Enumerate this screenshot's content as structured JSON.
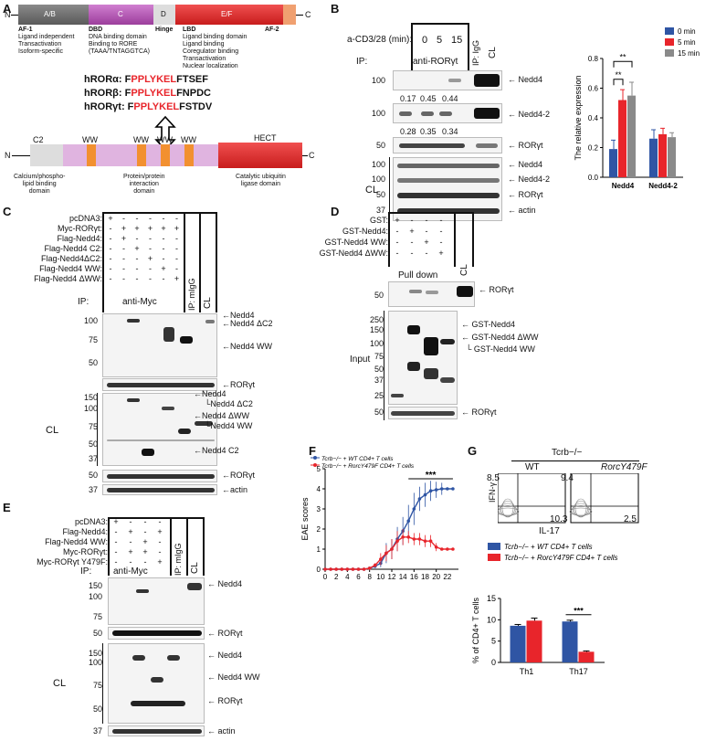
{
  "panels": {
    "A": "A",
    "B": "B",
    "C": "C",
    "D": "D",
    "E": "E",
    "F": "F",
    "G": "G"
  },
  "panelA": {
    "n": "N",
    "c": "C",
    "domains": [
      "A/B",
      "C",
      "D",
      "E/F"
    ],
    "af1": "AF-1",
    "af1_desc": "Ligand independent\nTransactivation\nIsoform-specific",
    "dbd": "DBD",
    "dbd_desc": "DNA binding domain\nBinding to RORE\n(TAAA/TNTAGGTCA)",
    "hinge": "Hinge",
    "lbd": "LBD",
    "lbd_desc": "Ligand binding domain\nLigand binding\nCoregulator binding\nTransactivation\nNuclear localization",
    "af2": "AF-2",
    "seqs": [
      {
        "name": "hRORα:",
        "pre": "F",
        "motif": "PPLYKEL",
        "post": "FTSEF"
      },
      {
        "name": "hRORβ:",
        "pre": "F",
        "motif": "PPLYKEL",
        "post": "FNPDC"
      },
      {
        "name": "hRORγt:",
        "pre": "F",
        "motif": "PPLYKEL",
        "post": "FSTDV"
      }
    ],
    "nedd4": {
      "n": "N",
      "c": "C",
      "c2": "C2",
      "ww": [
        "WW",
        "WW",
        "WW",
        "WW"
      ],
      "hect": "HECT",
      "desc1": "Calcium/phospho-\nlipid binding\ndomain",
      "desc2": "Protein/protein\ninteraction\ndomain",
      "desc3": "Catalytic ubiquitin\nligase domain"
    }
  },
  "panelB": {
    "acd": "a-CD3/28 (min):",
    "times": [
      "0",
      "5",
      "15"
    ],
    "ip": "IP:",
    "anti": "anti-RORγt",
    "ipigg": "IP: IgG",
    "cl": "CL",
    "row1": {
      "mw": "100",
      "vals": [
        "0.17",
        "0.45",
        "0.44"
      ],
      "label": "Nedd4"
    },
    "row2": {
      "mw": "100",
      "vals": [
        "0.28",
        "0.35",
        "0.34"
      ],
      "label": "Nedd4-2"
    },
    "row3": {
      "mw": "50",
      "label": "RORγt"
    },
    "cl_rows": [
      {
        "mw": "100",
        "label": "Nedd4"
      },
      {
        "mw": "100",
        "label": "Nedd4-2"
      },
      {
        "mw": "50",
        "label": "RORγt"
      },
      {
        "mw": "37",
        "label": "actin"
      }
    ],
    "cl_side": "CL"
  },
  "panelC": {
    "rows": [
      {
        "label": "pcDNA3:",
        "signs": [
          "+",
          "-",
          "-",
          "-",
          "-",
          "-"
        ]
      },
      {
        "label": "Myc-RORγt:",
        "signs": [
          "-",
          "+",
          "+",
          "+",
          "+",
          "+"
        ]
      },
      {
        "label": "Flag-Nedd4:",
        "signs": [
          "-",
          "+",
          "-",
          "-",
          "-",
          "-"
        ]
      },
      {
        "label": "Flag-Nedd4 C2:",
        "signs": [
          "-",
          "-",
          "+",
          "-",
          "-",
          "-"
        ]
      },
      {
        "label": "Flag-Nedd4ΔC2:",
        "signs": [
          "-",
          "-",
          "-",
          "+",
          "-",
          "-"
        ]
      },
      {
        "label": "Flag-Nedd4 WW:",
        "signs": [
          "-",
          "-",
          "-",
          "-",
          "+",
          "-"
        ]
      },
      {
        "label": "Flag-Nedd4 ΔWW:",
        "signs": [
          "-",
          "-",
          "-",
          "-",
          "-",
          "+"
        ]
      }
    ],
    "ip": "IP:",
    "anti": "anti-Myc",
    "ipmigg": "IP: mIgG",
    "cl": "CL",
    "mw1": [
      "100",
      "75",
      "50"
    ],
    "ann1": [
      "Nedd4",
      "Nedd4 ΔC2",
      "Nedd4 WW"
    ],
    "ror": "RORγt",
    "mw2": [
      "150",
      "100",
      "75",
      "50",
      "37"
    ],
    "ann2": [
      "Nedd4",
      "Nedd4 ΔC2",
      "Nedd4 ΔWW",
      "Nedd4 WW",
      "Nedd4 C2"
    ],
    "mw3": "50",
    "ror2": "RORγt",
    "mw4": "37",
    "actin": "actin",
    "cl_side": "CL"
  },
  "panelD": {
    "rows": [
      {
        "label": "GST:",
        "signs": [
          "+",
          "-",
          "-",
          "-"
        ]
      },
      {
        "label": "GST-Nedd4:",
        "signs": [
          "-",
          "+",
          "-",
          "-"
        ]
      },
      {
        "label": "GST-Nedd4 WW:",
        "signs": [
          "-",
          "-",
          "+",
          "-"
        ]
      },
      {
        "label": "GST-Nedd4 ΔWW:",
        "signs": [
          "-",
          "-",
          "-",
          "+"
        ]
      }
    ],
    "pulldown": "Pull down",
    "cl": "CL",
    "mw1": "50",
    "ror": "RORγt",
    "input": "Input",
    "mw2": [
      "250",
      "150",
      "100",
      "75",
      "50",
      "37",
      "25",
      "50"
    ],
    "ann": [
      "GST-Nedd4",
      "GST-Nedd4 ΔWW",
      "GST-Nedd4 WW",
      "RORγt"
    ]
  },
  "panelE": {
    "rows": [
      {
        "label": "pcDNA3:",
        "signs": [
          "+",
          "-",
          "-",
          "-"
        ]
      },
      {
        "label": "Flag-Nedd4:",
        "signs": [
          "-",
          "+",
          "-",
          "+"
        ]
      },
      {
        "label": "Flag-Nedd4 WW:",
        "signs": [
          "-",
          "-",
          "+",
          "-"
        ]
      },
      {
        "label": "Myc-RORγt:",
        "signs": [
          "-",
          "+",
          "+",
          "-"
        ]
      },
      {
        "label": "Myc-RORγt Y479F:",
        "signs": [
          "-",
          "-",
          "-",
          "+"
        ]
      }
    ],
    "ip": "IP:",
    "anti": "anti-Myc",
    "ipmigg": "IP: mIgG",
    "cl": "CL",
    "mw1": [
      "150",
      "100",
      "75"
    ],
    "ann1": "Nedd4",
    "mw2": "50",
    "ror": "RORγt",
    "mw3": [
      "150",
      "100",
      "75",
      "50"
    ],
    "ann3": [
      "Nedd4",
      "Nedd4 WW",
      "RORγt"
    ],
    "mw4": "37",
    "actin": "actin",
    "cl_side": "CL"
  },
  "panelF": {
    "ylabel": "EAE scores",
    "sig": "***",
    "legend": [
      "Tcrb−/− + WT CD4+ T cells",
      "Tcrb−/− + RorcY479F CD4+ T cells"
    ]
  },
  "panelG": {
    "title": "Tcrb−/−",
    "wt": "WT",
    "mut": "RorcY479F",
    "ylab": "IFN-γ",
    "xlab": "IL-17",
    "wt_q": {
      "tl": "8.5",
      "br": "10.3"
    },
    "mut_q": {
      "tl": "9.4",
      "br": "2.5"
    },
    "legend": [
      "Tcrb−/− + WT CD4+ T cells",
      "Tcrb−/− + RorcY479F CD4+ T cells"
    ],
    "sig": "***"
  },
  "chart_data": [
    {
      "type": "bar",
      "title": "",
      "ylabel": "The relative expression",
      "categories": [
        "Nedd4",
        "Nedd4-2"
      ],
      "ylim": [
        0,
        0.8
      ],
      "legend_position": "top-right",
      "series": [
        {
          "name": "0 min",
          "color": "#2f55a4",
          "values": [
            0.19,
            0.26
          ],
          "err": [
            0.06,
            0.06
          ]
        },
        {
          "name": "5 min",
          "color": "#e8252b",
          "values": [
            0.52,
            0.29
          ],
          "err": [
            0.07,
            0.04
          ]
        },
        {
          "name": "15 min",
          "color": "#8a8a8a",
          "values": [
            0.55,
            0.27
          ],
          "err": [
            0.09,
            0.03
          ]
        }
      ],
      "yticks": [
        "0.0",
        "0.2",
        "0.4",
        "0.6",
        "0.8"
      ],
      "annotations": [
        "**",
        "**"
      ]
    },
    {
      "type": "line",
      "ylabel": "EAE scores",
      "xlabel": "",
      "xlim": [
        0,
        24
      ],
      "ylim": [
        0,
        5
      ],
      "xticks": [
        "0",
        "4",
        "8",
        "12",
        "16",
        "20"
      ],
      "xticks_extra": [
        "2",
        "6",
        "10",
        "14",
        "18",
        "22"
      ],
      "yticks": [
        "0",
        "1",
        "2",
        "3",
        "4",
        "5"
      ],
      "x": [
        0,
        1,
        2,
        3,
        4,
        5,
        6,
        7,
        8,
        9,
        10,
        11,
        12,
        13,
        14,
        15,
        16,
        17,
        18,
        19,
        20,
        21,
        22,
        23
      ],
      "series": [
        {
          "name": "Tcrb−/− + WT CD4+ T cells",
          "color": "#2f55a4",
          "values": [
            0,
            0,
            0,
            0,
            0,
            0,
            0,
            0,
            0.05,
            0.15,
            0.3,
            0.8,
            1.0,
            1.5,
            1.9,
            2.4,
            3.0,
            3.5,
            3.7,
            3.9,
            3.95,
            4.0,
            4.0,
            4.0
          ],
          "err": [
            0,
            0,
            0,
            0,
            0,
            0,
            0,
            0,
            0.05,
            0.1,
            0.2,
            0.5,
            0.5,
            0.6,
            0.7,
            0.8,
            0.8,
            0.6,
            0.6,
            0.5,
            0.4,
            0.3,
            0,
            0
          ]
        },
        {
          "name": "Tcrb−/− + RorcY479F CD4+ T cells",
          "color": "#e8252b",
          "values": [
            0,
            0,
            0,
            0,
            0,
            0,
            0,
            0,
            0.05,
            0.2,
            0.5,
            0.8,
            1.0,
            1.4,
            1.6,
            1.6,
            1.5,
            1.5,
            1.4,
            1.4,
            1.1,
            1.0,
            1.0,
            1.0
          ],
          "err": [
            0,
            0,
            0,
            0,
            0,
            0,
            0,
            0,
            0.05,
            0.1,
            0.3,
            0.4,
            0.5,
            0.5,
            0.4,
            0.3,
            0.3,
            0.3,
            0.3,
            0.3,
            0.2,
            0,
            0,
            0
          ]
        }
      ],
      "annotation": "***"
    },
    {
      "type": "bar",
      "ylabel": "% of CD4+ T cells",
      "categories": [
        "Th1",
        "Th17"
      ],
      "ylim": [
        0,
        15
      ],
      "yticks": [
        "0",
        "5",
        "10",
        "15"
      ],
      "series": [
        {
          "name": "Tcrb−/− + WT CD4+ T cells",
          "color": "#2f55a4",
          "values": [
            8.6,
            9.6
          ],
          "err": [
            0.3,
            0.3
          ]
        },
        {
          "name": "Tcrb−/− + RorcY479F CD4+ T cells",
          "color": "#e8252b",
          "values": [
            9.8,
            2.5
          ],
          "err": [
            0.6,
            0.2
          ]
        }
      ],
      "annotation": "***"
    }
  ]
}
